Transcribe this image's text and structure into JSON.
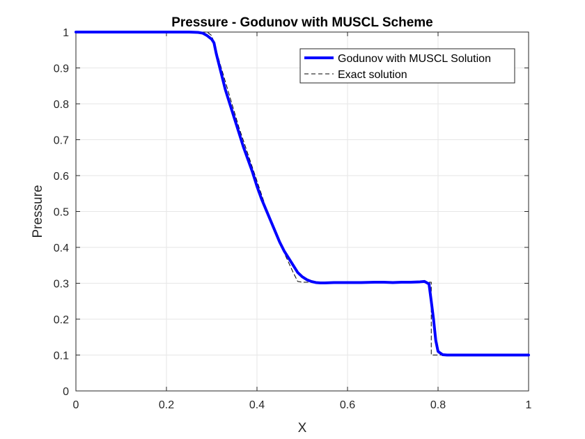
{
  "chart_data": {
    "type": "line",
    "title": "Pressure - Godunov with MUSCL Scheme",
    "xlabel": "X",
    "ylabel": "Pressure",
    "xlim": [
      0,
      1
    ],
    "ylim": [
      0,
      1
    ],
    "xticks": [
      "0",
      "0.2",
      "0.4",
      "0.6",
      "0.8",
      "1"
    ],
    "yticks": [
      "0",
      "0.1",
      "0.2",
      "0.3",
      "0.4",
      "0.5",
      "0.6",
      "0.7",
      "0.8",
      "0.9",
      "1"
    ],
    "grid": true,
    "legend_position": "top-right",
    "series": [
      {
        "name": "Godunov with MUSCL Solution",
        "color": "#0000ff",
        "style": "solid",
        "x": [
          0,
          0.1,
          0.2,
          0.25,
          0.27,
          0.28,
          0.29,
          0.3,
          0.305,
          0.31,
          0.32,
          0.33,
          0.34,
          0.35,
          0.36,
          0.37,
          0.38,
          0.39,
          0.4,
          0.41,
          0.42,
          0.43,
          0.44,
          0.45,
          0.46,
          0.47,
          0.48,
          0.49,
          0.5,
          0.51,
          0.52,
          0.53,
          0.54,
          0.55,
          0.57,
          0.6,
          0.63,
          0.66,
          0.68,
          0.7,
          0.72,
          0.74,
          0.76,
          0.77,
          0.78,
          0.785,
          0.79,
          0.795,
          0.8,
          0.81,
          0.82,
          0.85,
          0.9,
          1.0
        ],
        "y": [
          1.0,
          1.0,
          1.0,
          1.0,
          0.999,
          0.997,
          0.99,
          0.98,
          0.97,
          0.94,
          0.89,
          0.84,
          0.8,
          0.76,
          0.72,
          0.68,
          0.645,
          0.61,
          0.57,
          0.535,
          0.505,
          0.475,
          0.445,
          0.415,
          0.39,
          0.37,
          0.35,
          0.33,
          0.318,
          0.31,
          0.305,
          0.302,
          0.301,
          0.301,
          0.302,
          0.302,
          0.302,
          0.303,
          0.303,
          0.302,
          0.303,
          0.303,
          0.304,
          0.305,
          0.298,
          0.25,
          0.2,
          0.14,
          0.11,
          0.101,
          0.1,
          0.1,
          0.1,
          0.1
        ]
      },
      {
        "name": "Exact solution",
        "color": "#000000",
        "style": "dashed",
        "x": [
          0,
          0.29,
          0.3,
          0.31,
          0.32,
          0.34,
          0.36,
          0.38,
          0.4,
          0.42,
          0.44,
          0.46,
          0.48,
          0.49,
          0.5,
          0.55,
          0.6,
          0.65,
          0.7,
          0.75,
          0.78,
          0.785,
          0.785,
          0.8,
          0.85,
          0.9,
          1.0
        ],
        "y": [
          1.0,
          1.0,
          0.99,
          0.95,
          0.905,
          0.82,
          0.735,
          0.66,
          0.585,
          0.51,
          0.445,
          0.385,
          0.33,
          0.305,
          0.303,
          0.303,
          0.303,
          0.303,
          0.303,
          0.303,
          0.303,
          0.303,
          0.1,
          0.1,
          0.1,
          0.1,
          0.1
        ]
      }
    ]
  }
}
